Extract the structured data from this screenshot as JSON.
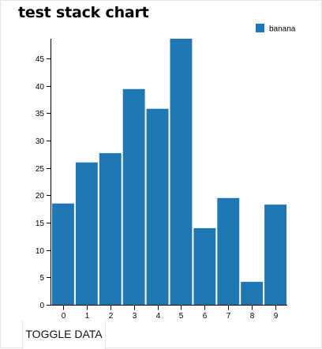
{
  "chart_data": {
    "type": "bar",
    "title": "test stack chart",
    "categories": [
      "0",
      "1",
      "2",
      "3",
      "4",
      "5",
      "6",
      "7",
      "8",
      "9"
    ],
    "series": [
      {
        "name": "banana",
        "color": "#1f77b4",
        "values": [
          18.5,
          26,
          27.7,
          39.4,
          35.8,
          48.6,
          14,
          19.5,
          4.2,
          18.3
        ]
      }
    ],
    "yticks": [
      0,
      5,
      10,
      15,
      20,
      25,
      30,
      35,
      40,
      45
    ],
    "ylim": [
      0,
      48.6
    ],
    "legend_position": "top-right",
    "grid": false
  },
  "controls": {
    "toggle_label": "TOGGLE DATA"
  }
}
